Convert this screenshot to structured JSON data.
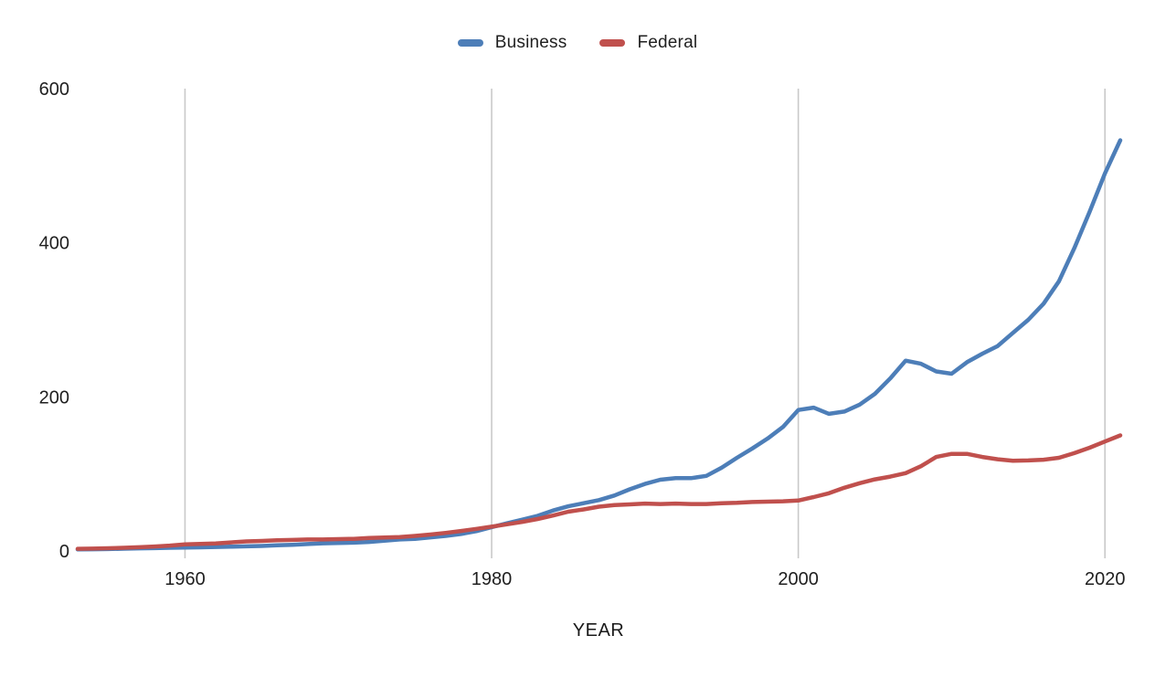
{
  "page": {
    "background": "#ffffff",
    "text_color": "#1f1f1f",
    "gridline_color": "#c9c9c9"
  },
  "chart_data": {
    "type": "line",
    "title": "",
    "xlabel": "YEAR",
    "ylabel": "",
    "xlim": [
      1953,
      2021
    ],
    "ylim": [
      0,
      600
    ],
    "x_ticks": [
      1960,
      1980,
      2000,
      2020
    ],
    "y_ticks": [
      0,
      200,
      400,
      600
    ],
    "grid": "vertical-only",
    "legend_position": "top-center",
    "x": [
      1953,
      1954,
      1955,
      1956,
      1957,
      1958,
      1959,
      1960,
      1961,
      1962,
      1963,
      1964,
      1965,
      1966,
      1967,
      1968,
      1969,
      1970,
      1971,
      1972,
      1973,
      1974,
      1975,
      1976,
      1977,
      1978,
      1979,
      1980,
      1981,
      1982,
      1983,
      1984,
      1985,
      1986,
      1987,
      1988,
      1989,
      1990,
      1991,
      1992,
      1993,
      1994,
      1995,
      1996,
      1997,
      1998,
      1999,
      2000,
      2001,
      2002,
      2003,
      2004,
      2005,
      2006,
      2007,
      2008,
      2009,
      2010,
      2011,
      2012,
      2013,
      2014,
      2015,
      2016,
      2017,
      2018,
      2019,
      2020,
      2021
    ],
    "series": [
      {
        "name": "Business",
        "color": "#4d7eb8",
        "values": [
          2,
          2.2,
          2.5,
          3,
          3.4,
          3.7,
          4.1,
          4.5,
          4.8,
          5.2,
          5.6,
          6,
          6.5,
          7.3,
          8.1,
          9,
          10,
          10.4,
          10.8,
          11.7,
          13.3,
          14.9,
          15.8,
          17.7,
          19.6,
          22.1,
          25.7,
          30.9,
          35.9,
          40.7,
          45.6,
          52.5,
          58,
          62,
          66,
          72,
          80,
          87,
          92.5,
          94.5,
          94.5,
          97.5,
          108,
          121,
          133,
          146,
          161,
          183,
          186,
          178,
          181,
          190,
          204,
          224,
          247,
          243,
          233,
          230,
          245,
          256,
          266,
          283,
          300,
          321,
          350,
          393,
          440,
          490,
          533
        ]
      },
      {
        "name": "Federal",
        "color": "#c0504d",
        "values": [
          2.8,
          3.1,
          3.5,
          4.2,
          4.9,
          5.8,
          7,
          8.7,
          9.3,
          9.9,
          11.2,
          12.5,
          13,
          13.9,
          14.4,
          14.9,
          15,
          15.4,
          15.8,
          16.8,
          17.4,
          18.2,
          19.6,
          21.4,
          23.5,
          26,
          28.7,
          31.5,
          34.6,
          37.8,
          41.5,
          46,
          51,
          54,
          57.5,
          59.5,
          60.5,
          61.5,
          61,
          61.5,
          61,
          61,
          62,
          62.5,
          63.5,
          64,
          64.5,
          65.5,
          70,
          75,
          82,
          88,
          93,
          96.5,
          101,
          110,
          122,
          126,
          126,
          122,
          119,
          117,
          117.5,
          118.5,
          121,
          127,
          134,
          142,
          150
        ]
      }
    ]
  }
}
